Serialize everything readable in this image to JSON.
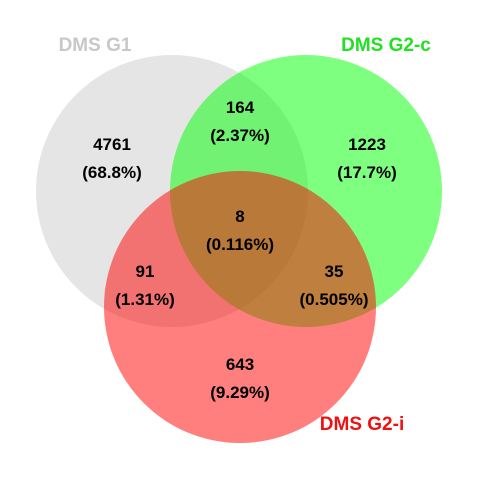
{
  "sets": [
    {
      "id": "g1",
      "label": "DMS G1",
      "fill": "#cccccc",
      "label_color": "#c8c8c8"
    },
    {
      "id": "g2c",
      "label": "DMS G2-c",
      "fill": "#00ff00",
      "label_color": "#22e022"
    },
    {
      "id": "g2i",
      "label": "DMS G2-i",
      "fill": "#ff0000",
      "label_color": "#ee1111"
    }
  ],
  "regions": [
    {
      "id": "g1_only",
      "sets": [
        "g1"
      ],
      "count": "4761",
      "percent": "(68.8%)"
    },
    {
      "id": "g1_g2c",
      "sets": [
        "g1",
        "g2c"
      ],
      "count": "164",
      "percent": "(2.37%)"
    },
    {
      "id": "g2c_only",
      "sets": [
        "g2c"
      ],
      "count": "1223",
      "percent": "(17.7%)"
    },
    {
      "id": "all_three",
      "sets": [
        "g1",
        "g2c",
        "g2i"
      ],
      "count": "8",
      "percent": "(0.116%)"
    },
    {
      "id": "g1_g2i",
      "sets": [
        "g1",
        "g2i"
      ],
      "count": "91",
      "percent": "(1.31%)"
    },
    {
      "id": "g2c_g2i",
      "sets": [
        "g2c",
        "g2i"
      ],
      "count": "35",
      "percent": "(0.505%)"
    },
    {
      "id": "g2i_only",
      "sets": [
        "g2i"
      ],
      "count": "643",
      "percent": "(9.29%)"
    }
  ]
}
